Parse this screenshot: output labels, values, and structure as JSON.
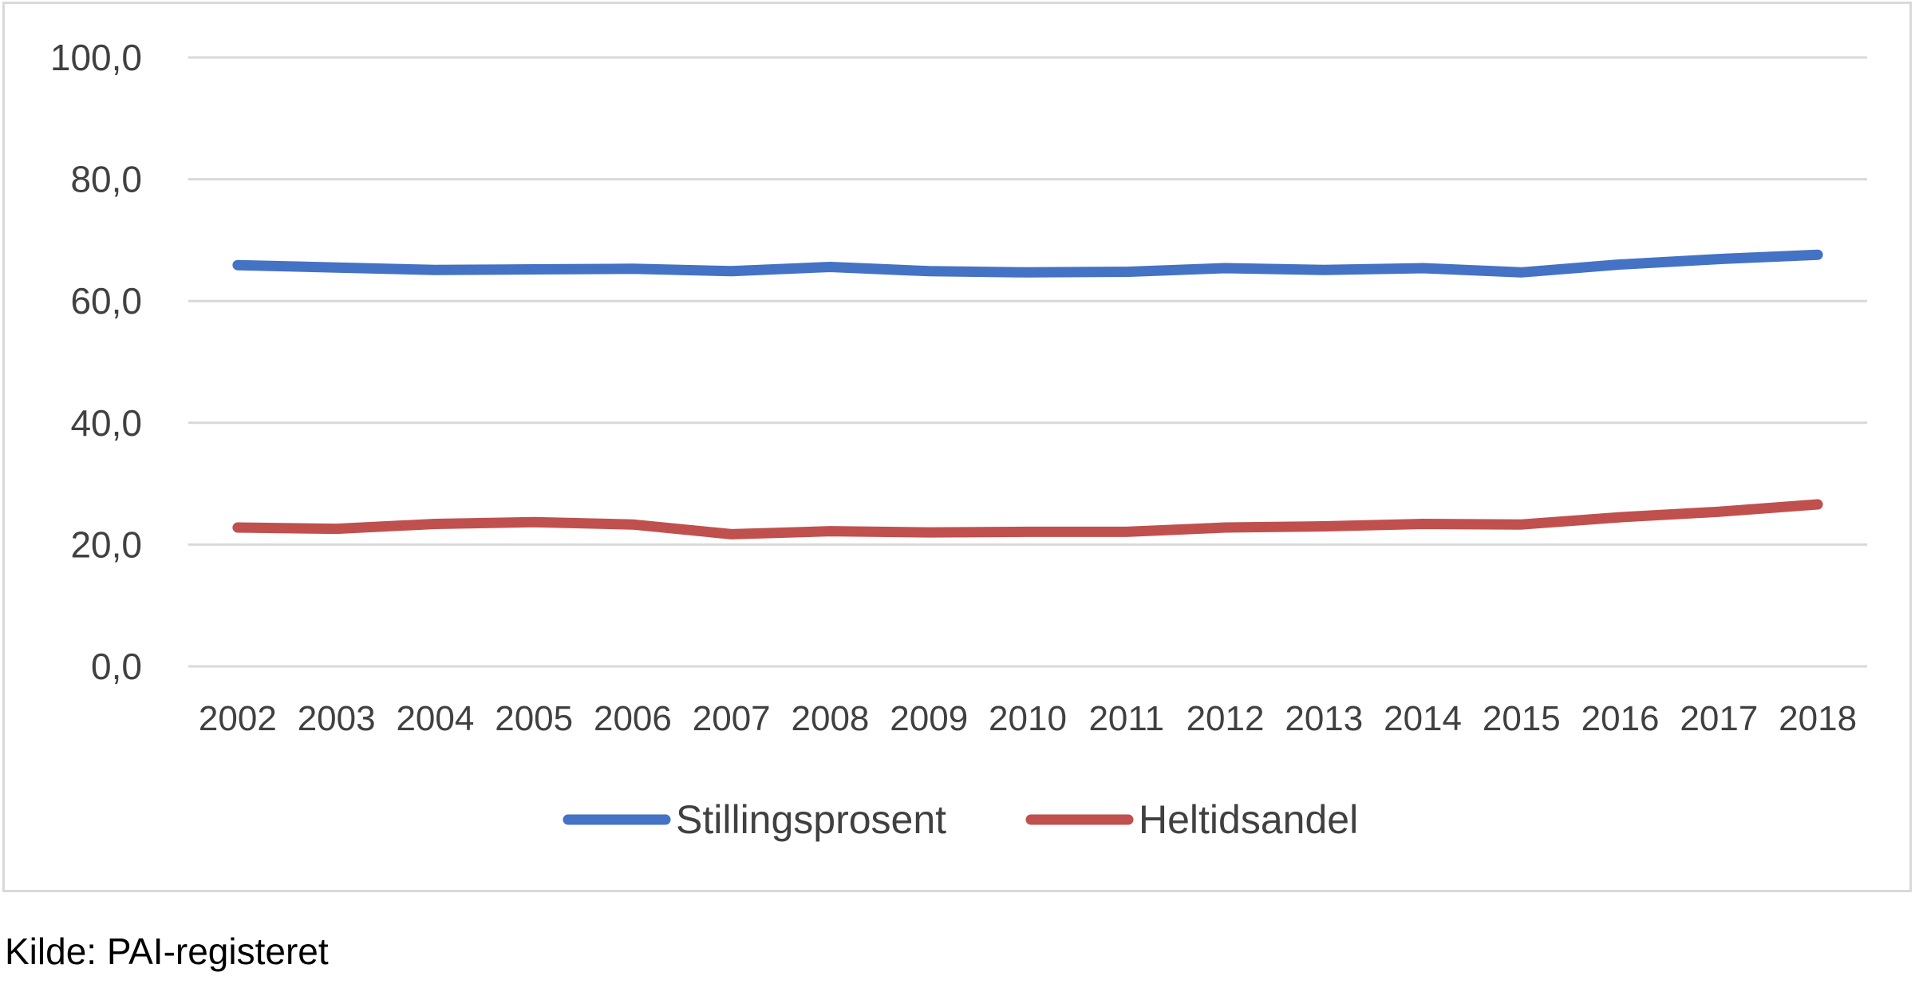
{
  "chart_data": {
    "type": "line",
    "title": "",
    "xlabel": "",
    "ylabel": "",
    "categories": [
      "2002",
      "2003",
      "2004",
      "2005",
      "2006",
      "2007",
      "2008",
      "2009",
      "2010",
      "2011",
      "2012",
      "2013",
      "2014",
      "2015",
      "2016",
      "2017",
      "2018"
    ],
    "y_ticks": [
      "0,0",
      "20,0",
      "40,0",
      "60,0",
      "80,0",
      "100,0"
    ],
    "ylim": [
      0,
      100
    ],
    "grid": true,
    "legend_position": "bottom",
    "series": [
      {
        "name": "Stillingsprosent",
        "color": "#4472c4",
        "values": [
          65.9,
          65.5,
          65.1,
          65.2,
          65.3,
          64.9,
          65.6,
          64.9,
          64.7,
          64.8,
          65.4,
          65.1,
          65.4,
          64.7,
          66.0,
          66.9,
          67.6
        ]
      },
      {
        "name": "Heltidsandel",
        "color": "#c0504d",
        "values": [
          22.8,
          22.6,
          23.4,
          23.7,
          23.3,
          21.7,
          22.2,
          22.0,
          22.1,
          22.1,
          22.8,
          23.0,
          23.4,
          23.3,
          24.5,
          25.4,
          26.6
        ]
      }
    ]
  },
  "source_note": "Kilde: PAI-registeret"
}
